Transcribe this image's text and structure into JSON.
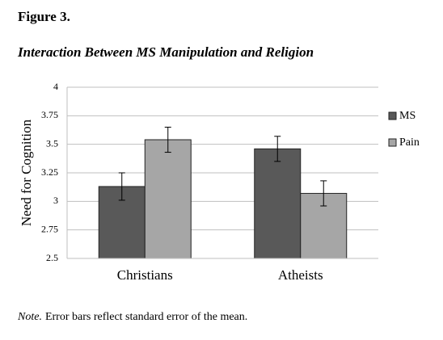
{
  "figure_label": "Figure 3.",
  "chart_data": {
    "type": "bar",
    "title": "Interaction Between MS Manipulation and Religion",
    "y_label": "Need for Cognition",
    "categories": [
      "Christians",
      "Atheists"
    ],
    "series": [
      {
        "name": "MS",
        "color": "#595959",
        "values": [
          3.13,
          3.46
        ],
        "errors": [
          0.12,
          0.11
        ]
      },
      {
        "name": "Pain",
        "color": "#a6a6a6",
        "values": [
          3.54,
          3.07
        ],
        "errors": [
          0.11,
          0.11
        ]
      }
    ],
    "ylim": [
      2.5,
      4
    ],
    "yticks": [
      2.5,
      2.75,
      3,
      3.25,
      3.5,
      3.75,
      4
    ],
    "grid": true,
    "legend": "right"
  },
  "note": {
    "label": "Note.",
    "text": "Error bars reflect standard error of the mean."
  }
}
